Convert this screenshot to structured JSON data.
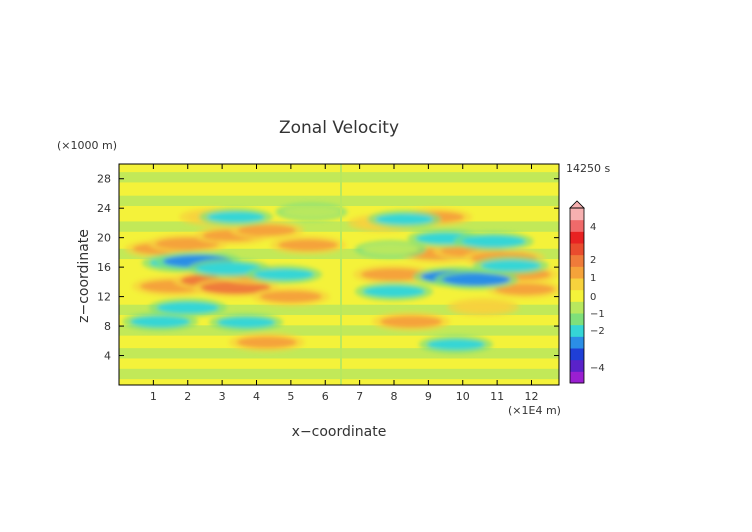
{
  "chart_data": {
    "type": "heatmap",
    "title": "Zonal Velocity",
    "xlabel": "x−coordinate",
    "ylabel": "z−coordinate",
    "x_unit": "(×1E4 m)",
    "y_unit": "(×1000 m)",
    "time_label": "14250 s",
    "xlim": [
      0,
      12.8
    ],
    "ylim": [
      0,
      30
    ],
    "x_ticks": [
      "1",
      "2",
      "3",
      "4",
      "5",
      "6",
      "7",
      "8",
      "9",
      "10",
      "11",
      "12"
    ],
    "y_ticks": [
      "4",
      "8",
      "12",
      "16",
      "20",
      "24",
      "28"
    ],
    "colorbar_labels": [
      "4",
      "2",
      "1",
      "0",
      "−1",
      "−2",
      "−4"
    ],
    "colorbar_colors": [
      "#9a1fd1",
      "#5a22c9",
      "#1f3fd6",
      "#2b8ee6",
      "#35d6d6",
      "#7fe07a",
      "#b8e85e",
      "#f4f23a",
      "#f7d23d",
      "#f5a33a",
      "#ef7b3a",
      "#e94c2e",
      "#e82222",
      "#f06a6a",
      "#f7b0b0"
    ],
    "features": [
      {
        "x": 1.6,
        "z": 13.4,
        "u": 1.4
      },
      {
        "x": 2.9,
        "z": 14.2,
        "u": 1.8
      },
      {
        "x": 3.4,
        "z": 13.2,
        "u": 1.5
      },
      {
        "x": 4.0,
        "z": 15.0,
        "u": 1.2
      },
      {
        "x": 1.3,
        "z": 18.5,
        "u": 1.1
      },
      {
        "x": 2.0,
        "z": 19.2,
        "u": 1.2
      },
      {
        "x": 3.3,
        "z": 20.3,
        "u": 1.0
      },
      {
        "x": 4.3,
        "z": 21.0,
        "u": 0.9
      },
      {
        "x": 5.5,
        "z": 19.0,
        "u": 1.0
      },
      {
        "x": 5.0,
        "z": 12.0,
        "u": 1.1
      },
      {
        "x": 4.3,
        "z": 5.8,
        "u": 1.0
      },
      {
        "x": 2.8,
        "z": 22.8,
        "u": 0.8
      },
      {
        "x": 1.8,
        "z": 16.6,
        "u": -1.1
      },
      {
        "x": 2.3,
        "z": 16.8,
        "u": -1.5
      },
      {
        "x": 3.2,
        "z": 15.8,
        "u": -1.3
      },
      {
        "x": 4.8,
        "z": 15.0,
        "u": -1.0
      },
      {
        "x": 1.2,
        "z": 8.6,
        "u": -1.0
      },
      {
        "x": 2.0,
        "z": 10.5,
        "u": -1.1
      },
      {
        "x": 3.7,
        "z": 8.5,
        "u": -0.9
      },
      {
        "x": 3.4,
        "z": 22.8,
        "u": -0.9
      },
      {
        "x": 5.6,
        "z": 23.5,
        "u": -0.8
      },
      {
        "x": 8.0,
        "z": 15.0,
        "u": 1.3
      },
      {
        "x": 8.5,
        "z": 8.6,
        "u": 1.1
      },
      {
        "x": 9.3,
        "z": 17.8,
        "u": 1.1
      },
      {
        "x": 10.3,
        "z": 18.2,
        "u": 1.2
      },
      {
        "x": 11.2,
        "z": 17.2,
        "u": 1.3
      },
      {
        "x": 11.6,
        "z": 15.0,
        "u": 1.3
      },
      {
        "x": 11.8,
        "z": 13.0,
        "u": 1.0
      },
      {
        "x": 9.2,
        "z": 22.8,
        "u": 0.9
      },
      {
        "x": 10.6,
        "z": 10.6,
        "u": 0.8
      },
      {
        "x": 7.7,
        "z": 22.0,
        "u": 0.8
      },
      {
        "x": 9.8,
        "z": 14.7,
        "u": -1.5
      },
      {
        "x": 10.4,
        "z": 14.3,
        "u": -1.4
      },
      {
        "x": 9.5,
        "z": 19.9,
        "u": -1.0
      },
      {
        "x": 10.9,
        "z": 19.5,
        "u": -1.2
      },
      {
        "x": 11.4,
        "z": 16.2,
        "u": -1.0
      },
      {
        "x": 8.0,
        "z": 12.7,
        "u": -1.1
      },
      {
        "x": 8.3,
        "z": 22.5,
        "u": -0.9
      },
      {
        "x": 9.8,
        "z": 5.5,
        "u": -0.9
      },
      {
        "x": 7.9,
        "z": 18.4,
        "u": -0.8
      }
    ]
  }
}
